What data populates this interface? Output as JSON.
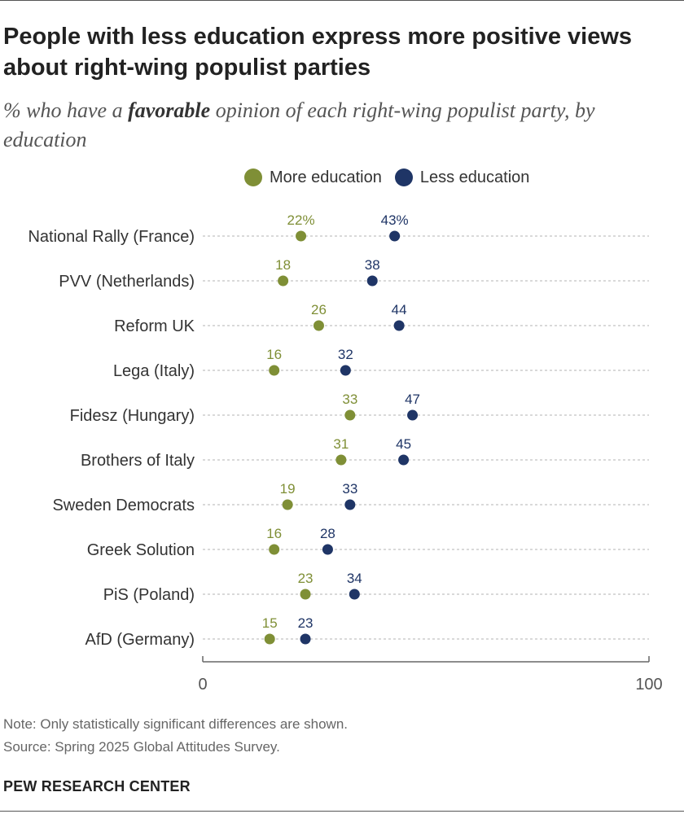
{
  "title": "People with less education express more positive views about right-wing populist parties",
  "subtitle": {
    "before": "% who have a ",
    "emphasis": "favorable",
    "after": " opinion of each right-wing populist party, by education"
  },
  "note": "Note: Only statistically significant differences are shown.",
  "source": "Source: Spring 2025 Global Attitudes Survey.",
  "brand": "PEW RESEARCH CENTER",
  "colors": {
    "more_education": "#7f8f36",
    "less_education": "#1f3566",
    "gridline": "#d9d9d9",
    "axis": "#666666"
  },
  "chart_data": {
    "type": "scatter",
    "categories": [
      "National Rally (France)",
      "PVV (Netherlands)",
      "Reform UK",
      "Lega (Italy)",
      "Fidesz (Hungary)",
      "Brothers of Italy",
      "Sweden Democrats",
      "Greek Solution",
      "PiS (Poland)",
      "AfD (Germany)"
    ],
    "series": [
      {
        "name": "More education",
        "values": [
          22,
          18,
          26,
          16,
          33,
          31,
          19,
          16,
          23,
          15
        ]
      },
      {
        "name": "Less education",
        "values": [
          43,
          38,
          44,
          32,
          47,
          45,
          33,
          28,
          34,
          23
        ]
      }
    ],
    "xlim": [
      0,
      100
    ],
    "xticks": [
      "0",
      "100"
    ],
    "first_row_suffix": "%",
    "legend_position": "top",
    "grid": false
  }
}
